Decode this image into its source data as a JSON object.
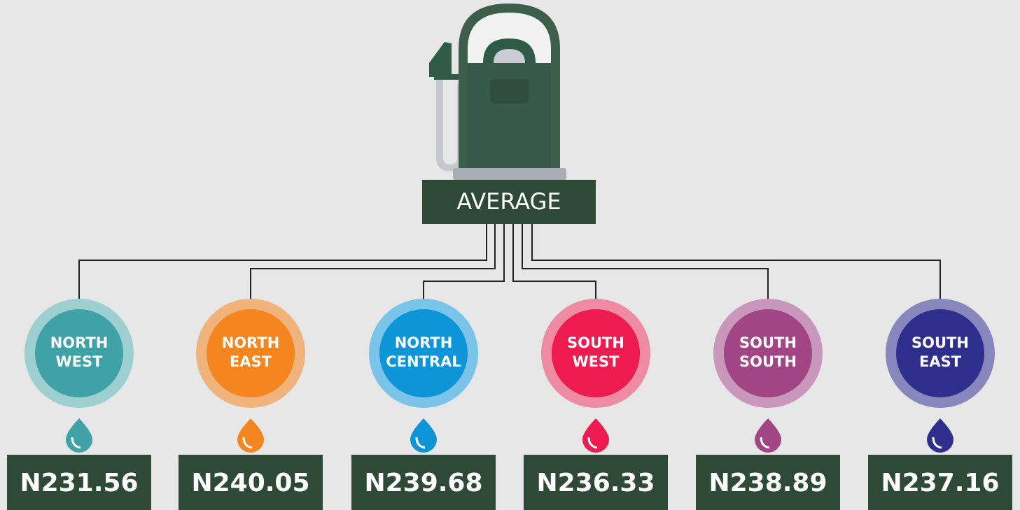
{
  "title": "AVERAGE",
  "regions": [
    {
      "name": [
        "NORTH",
        "WEST"
      ],
      "price": "N231.56",
      "color": "#3fa2a7",
      "ring": "#9dcfd1"
    },
    {
      "name": [
        "NORTH",
        "EAST"
      ],
      "price": "N240.05",
      "color": "#f5861f",
      "ring": "#f0b37c"
    },
    {
      "name": [
        "NORTH",
        "CENTRAL"
      ],
      "price": "N239.68",
      "color": "#0e95d7",
      "ring": "#7ac4ea"
    },
    {
      "name": [
        "SOUTH",
        "WEST"
      ],
      "price": "N236.33",
      "color": "#ee1b50",
      "ring": "#ee8ba3"
    },
    {
      "name": [
        "SOUTH",
        "SOUTH"
      ],
      "price": "N238.89",
      "color": "#a14585",
      "ring": "#c997bb"
    },
    {
      "name": [
        "SOUTH",
        "EAST"
      ],
      "price": "N237.16",
      "color": "#2e2e8c",
      "ring": "#8786bd"
    }
  ]
}
